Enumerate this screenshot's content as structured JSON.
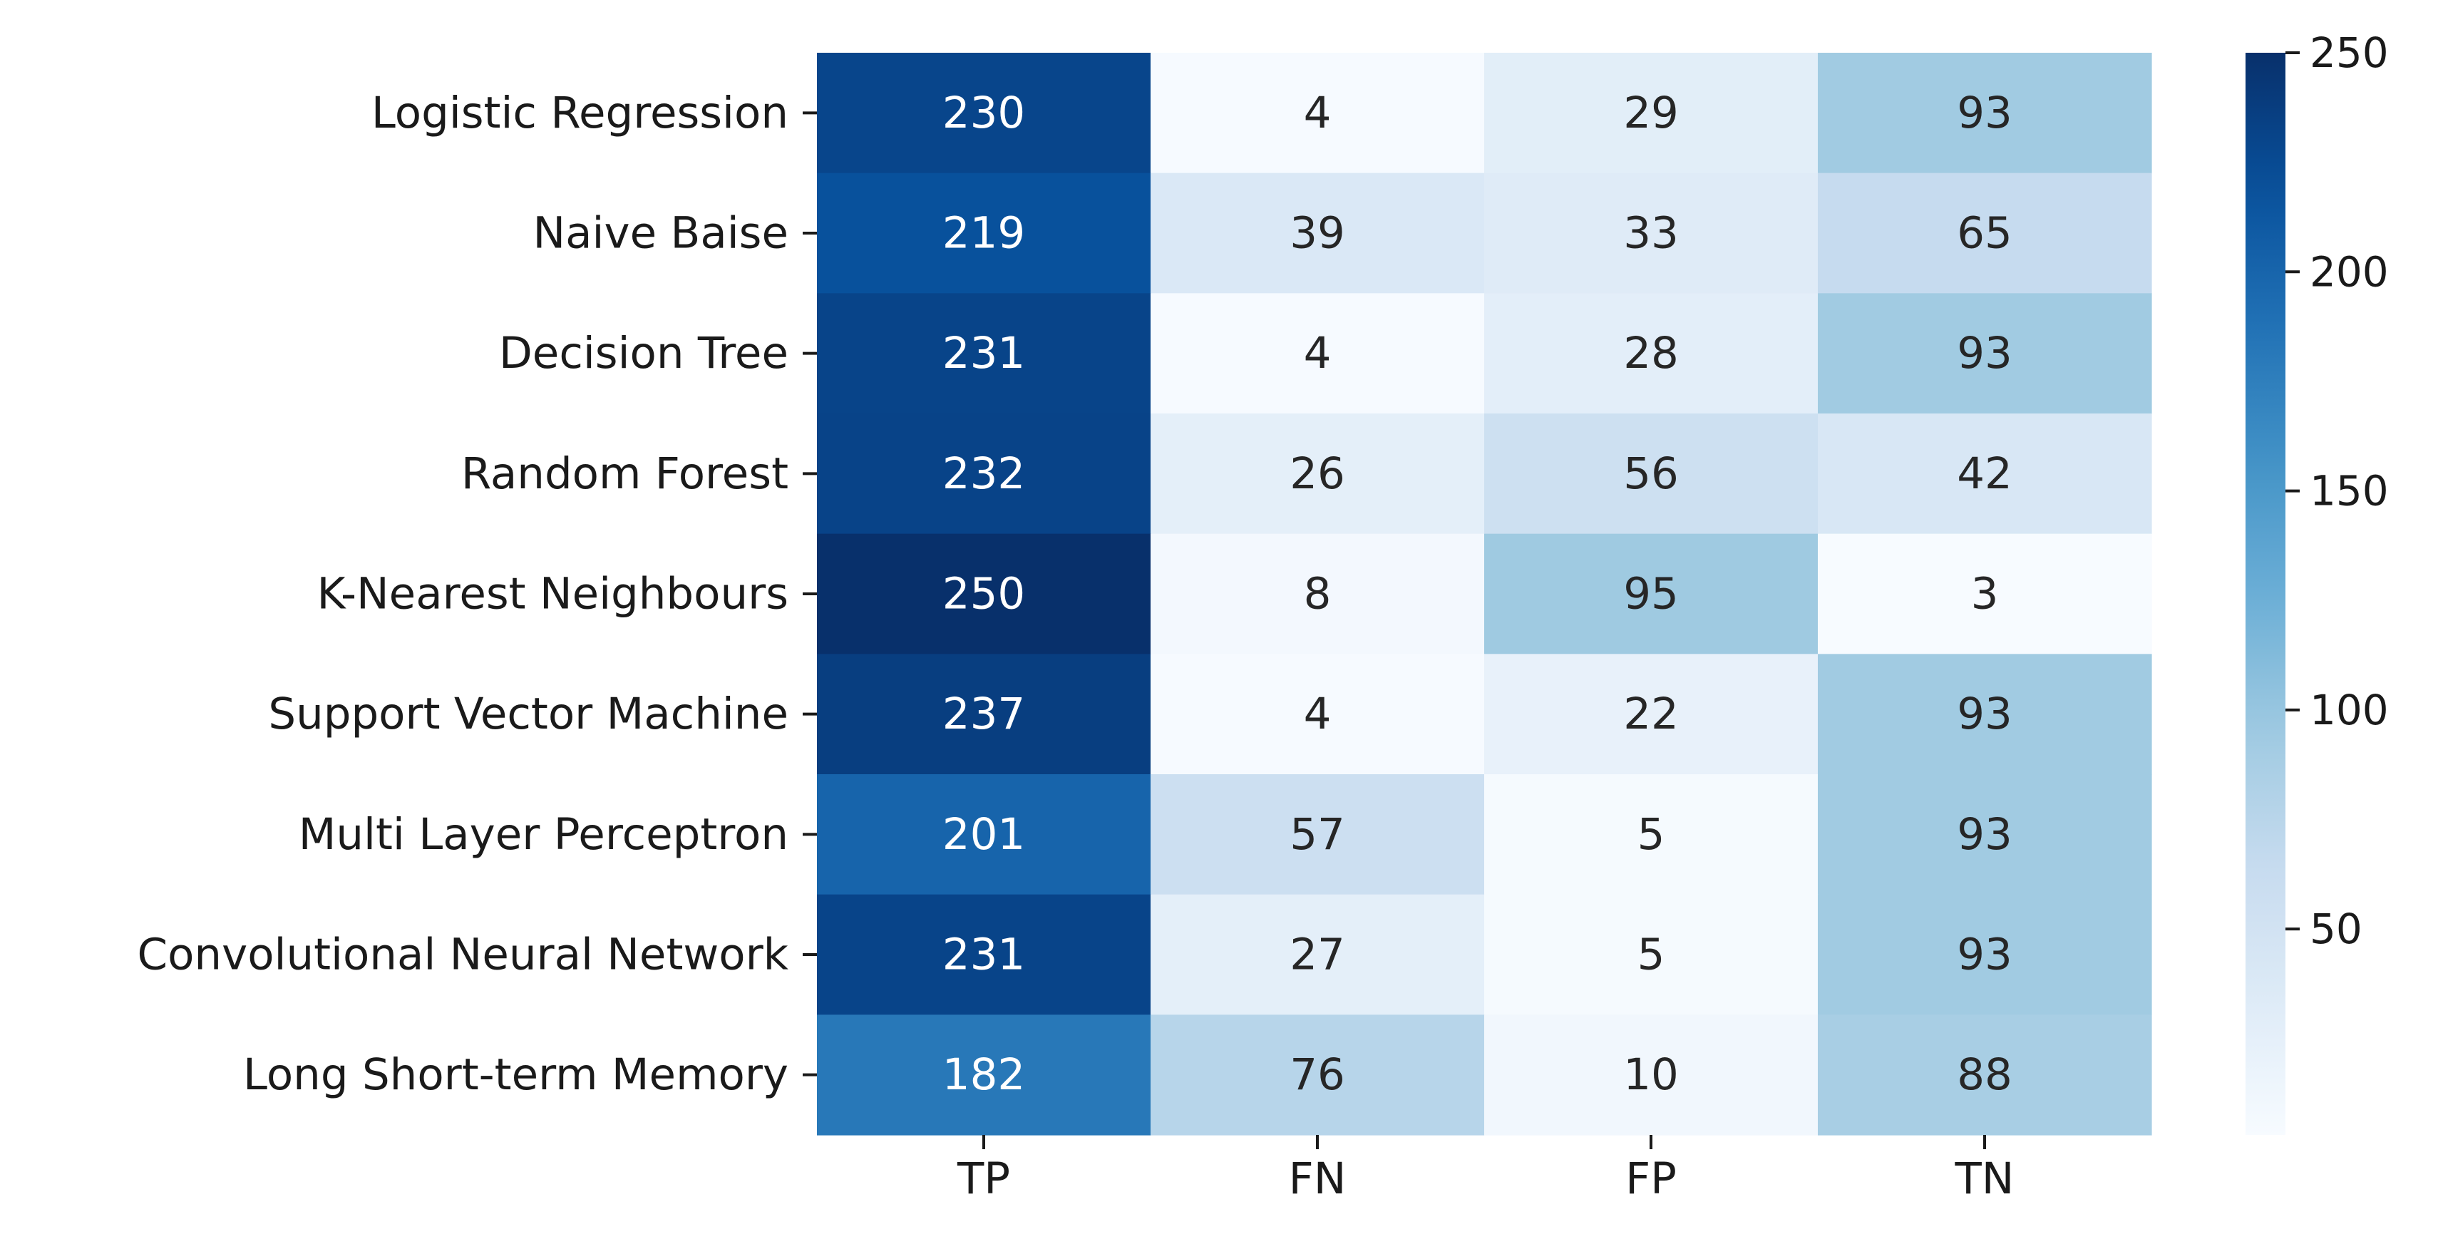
{
  "chart_data": {
    "type": "heatmap",
    "colormap": "Blues",
    "columns": [
      "TP",
      "FN",
      "FP",
      "TN"
    ],
    "rows": [
      "Logistic Regression",
      "Naive Baise",
      "Decision Tree",
      "Random Forest",
      "K-Nearest Neighbours",
      "Support Vector Machine",
      "Multi Layer Perceptron",
      "Convolutional Neural Network",
      "Long Short-term Memory"
    ],
    "values": [
      [
        230,
        4,
        29,
        93
      ],
      [
        219,
        39,
        33,
        65
      ],
      [
        231,
        4,
        28,
        93
      ],
      [
        232,
        26,
        56,
        42
      ],
      [
        250,
        8,
        95,
        3
      ],
      [
        237,
        4,
        22,
        93
      ],
      [
        201,
        57,
        5,
        93
      ],
      [
        231,
        27,
        5,
        93
      ],
      [
        182,
        76,
        10,
        88
      ]
    ],
    "colorbar": {
      "min": 3,
      "max": 250,
      "ticks": [
        50,
        100,
        150,
        200,
        250
      ]
    },
    "annotations": true,
    "title": "",
    "xlabel": "",
    "ylabel": ""
  }
}
